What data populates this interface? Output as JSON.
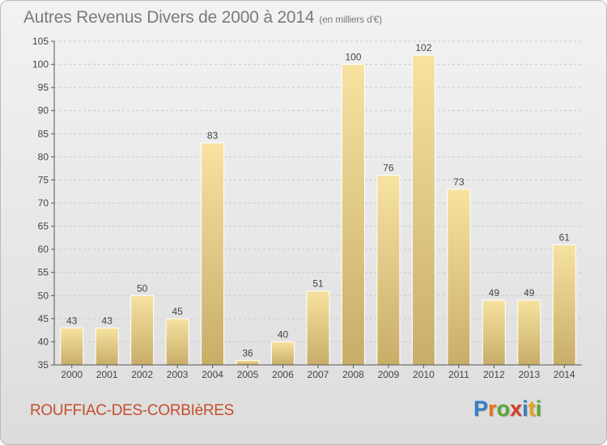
{
  "header": {
    "title": "Autres Revenus Divers de 2000 à 2014",
    "unit": "(en milliers d'€)"
  },
  "footer": {
    "commune": "ROUFFIAC-DES-CORBIèRES",
    "logo": {
      "letters": [
        "P",
        "r",
        "o",
        "x",
        "i",
        "t",
        "i"
      ],
      "colors": [
        "#2f7fc4",
        "#e8721c",
        "#5aa832",
        "#d63b2b",
        "#2f7fc4",
        "#e8a21c",
        "#5aa832"
      ]
    }
  },
  "chart_data": {
    "type": "bar",
    "categories": [
      "2000",
      "2001",
      "2002",
      "2003",
      "2004",
      "2005",
      "2006",
      "2007",
      "2008",
      "2009",
      "2010",
      "2011",
      "2012",
      "2013",
      "2014"
    ],
    "values": [
      43,
      43,
      50,
      45,
      83,
      36,
      40,
      51,
      100,
      76,
      102,
      73,
      49,
      49,
      61
    ],
    "ylim": [
      35,
      105
    ],
    "yticks": [
      35,
      40,
      45,
      50,
      55,
      60,
      65,
      70,
      75,
      80,
      85,
      90,
      95,
      100,
      105
    ],
    "grid": true,
    "bar_color_light": "#f7e2a0",
    "bar_color_dark": "#c8ad69",
    "axis_color": "#555555"
  }
}
